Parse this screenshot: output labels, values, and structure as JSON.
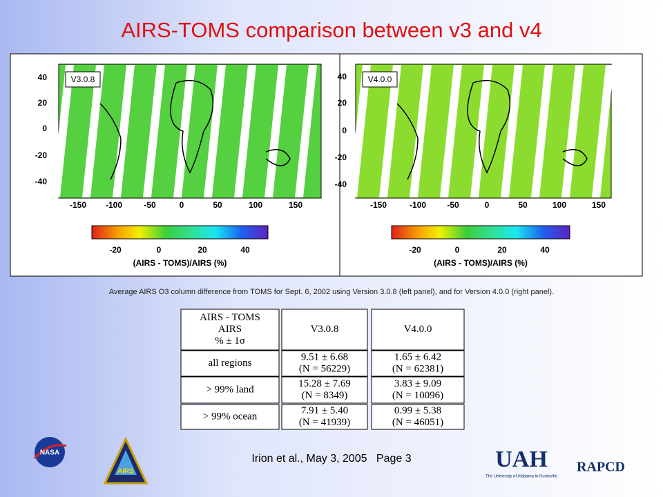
{
  "title": "AIRS-TOMS comparison between v3 and v4",
  "panels": [
    {
      "label": "V3.0.8",
      "yticks": [
        "40",
        "20",
        "0",
        "-20",
        "-40"
      ],
      "xticks": [
        "-150",
        "-100",
        "-50",
        "0",
        "50",
        "100",
        "150"
      ],
      "colorbar_ticks": [
        "-20",
        "0",
        "20",
        "40"
      ],
      "colorbar_label": "(AIRS - TOMS)/AIRS (%)"
    },
    {
      "label": "V4.0.0",
      "yticks": [
        "40",
        "20",
        "0",
        "-20",
        "-40"
      ],
      "xticks": [
        "-150",
        "-100",
        "-50",
        "0",
        "50",
        "100",
        "150"
      ],
      "colorbar_ticks": [
        "-20",
        "0",
        "20",
        "40"
      ],
      "colorbar_label": "(AIRS - TOMS)/AIRS (%)"
    }
  ],
  "caption": "Average AIRS O3 column difference from TOMS for Sept. 6, 2002 using Version 3.0.8 (left panel), and for Version 4.0.0 (right panel).",
  "table": {
    "header": [
      [
        "AIRS - TOMS",
        "AIRS",
        "% ± 1σ"
      ],
      [
        "V3.0.8"
      ],
      [
        "V4.0.0"
      ]
    ],
    "rows": [
      [
        [
          "all regions"
        ],
        [
          "9.51 ± 6.68",
          "(N = 56229)"
        ],
        [
          "1.65 ± 6.42",
          "(N = 62381)"
        ]
      ],
      [
        [
          "> 99% land"
        ],
        [
          "15.28 ± 7.69",
          "(N = 8349)"
        ],
        [
          "3.83 ± 9.09",
          "(N = 10096)"
        ]
      ],
      [
        [
          "> 99% ocean"
        ],
        [
          "7.91 ± 5.40",
          "(N = 41939)"
        ],
        [
          "0.99 ± 5.38",
          "(N = 46051)"
        ]
      ]
    ]
  },
  "footer": "Irion et al., May 3, 2005   Page 3",
  "logos": {
    "nasa": "NASA",
    "airs": "AIRS",
    "uah": "UAH",
    "uah_sub": "The University of Alabama in Huntsville",
    "rapcd": "RAPCD"
  }
}
